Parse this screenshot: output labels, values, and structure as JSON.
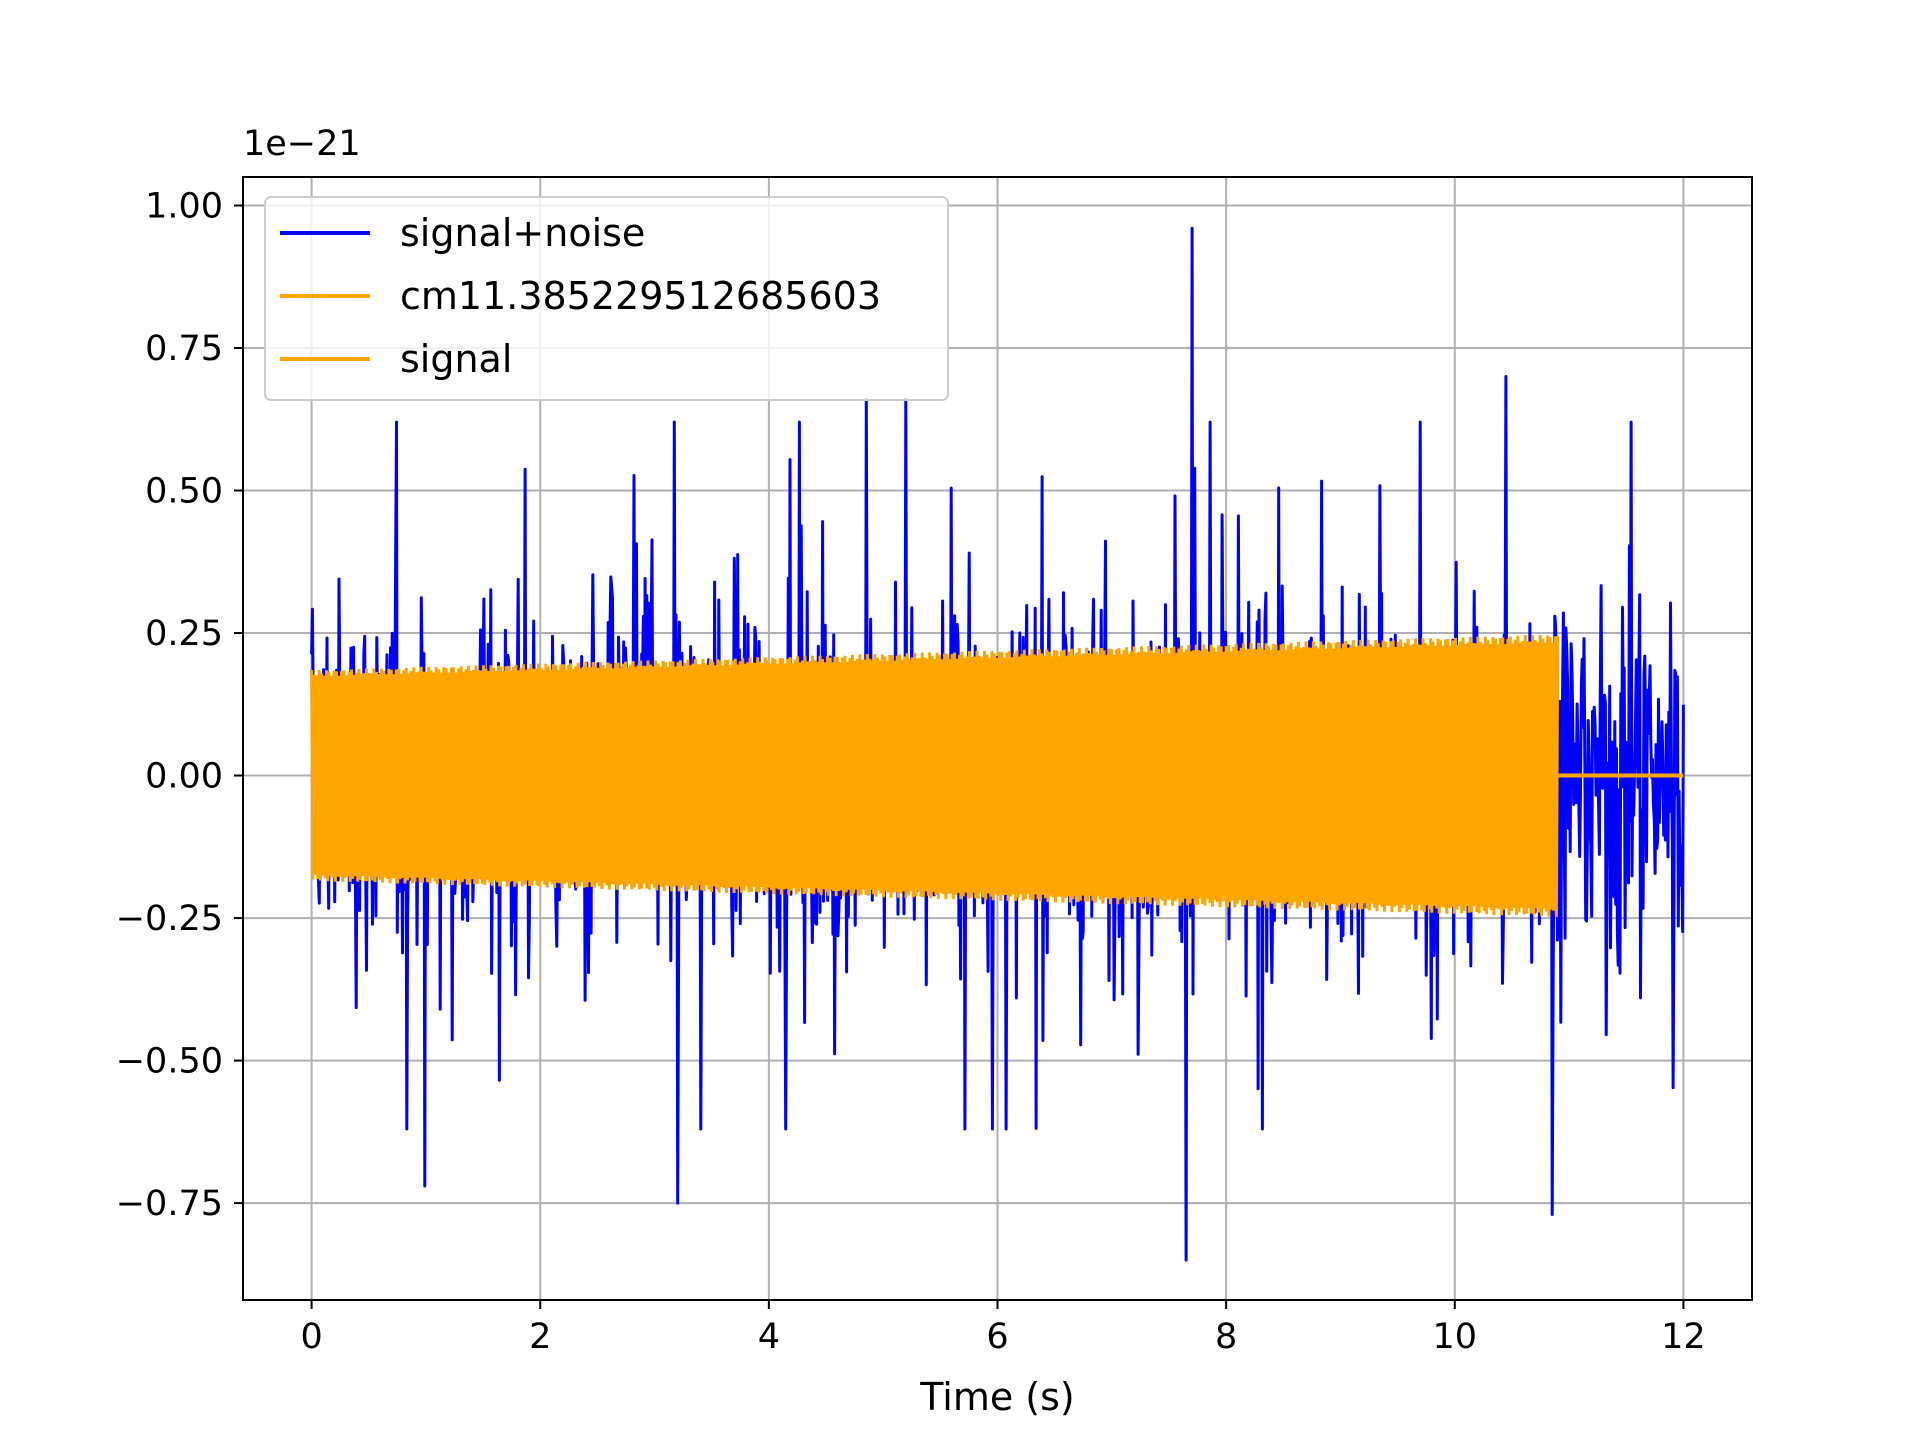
{
  "chart_data": {
    "type": "line",
    "title": "",
    "xlabel": "Time (s)",
    "ylabel": "",
    "y_offset_text": "1e−21",
    "xlim": [
      -0.6,
      12.6
    ],
    "ylim": [
      -0.92,
      1.05
    ],
    "x_ticks": [
      0,
      2,
      4,
      6,
      8,
      10,
      12
    ],
    "x_tick_labels": [
      "0",
      "2",
      "4",
      "6",
      "8",
      "10",
      "12"
    ],
    "y_ticks": [
      -0.75,
      -0.5,
      -0.25,
      0.0,
      0.25,
      0.5,
      0.75,
      1.0
    ],
    "y_tick_labels": [
      "−0.75",
      "−0.50",
      "−0.25",
      "0.00",
      "0.25",
      "0.50",
      "0.75",
      "1.00"
    ],
    "grid": true,
    "legend_position": "top-left",
    "series": [
      {
        "name": "signal+noise",
        "color": "#0000ff",
        "kind": "noisy_envelope",
        "x_range": [
          0,
          12
        ],
        "notable_extremes": [
          {
            "x": 0.99,
            "y": -0.72
          },
          {
            "x": 3.2,
            "y": -0.75
          },
          {
            "x": 4.85,
            "y": 0.66
          },
          {
            "x": 5.2,
            "y": 0.66
          },
          {
            "x": 7.65,
            "y": -0.85
          },
          {
            "x": 7.7,
            "y": 0.96
          },
          {
            "x": 10.45,
            "y": 0.7
          },
          {
            "x": 10.85,
            "y": -0.77
          }
        ]
      },
      {
        "name": "cm11.385229512685603",
        "color": "#ffa500",
        "kind": "legend_only"
      },
      {
        "name": "signal",
        "color": "#ffa500",
        "kind": "chirp_band",
        "x_range": [
          0,
          10.9
        ],
        "amplitude_start": 0.185,
        "amplitude_end": 0.248,
        "post_signal_value": 0.0,
        "post_signal_x_range": [
          10.9,
          12
        ]
      }
    ]
  }
}
